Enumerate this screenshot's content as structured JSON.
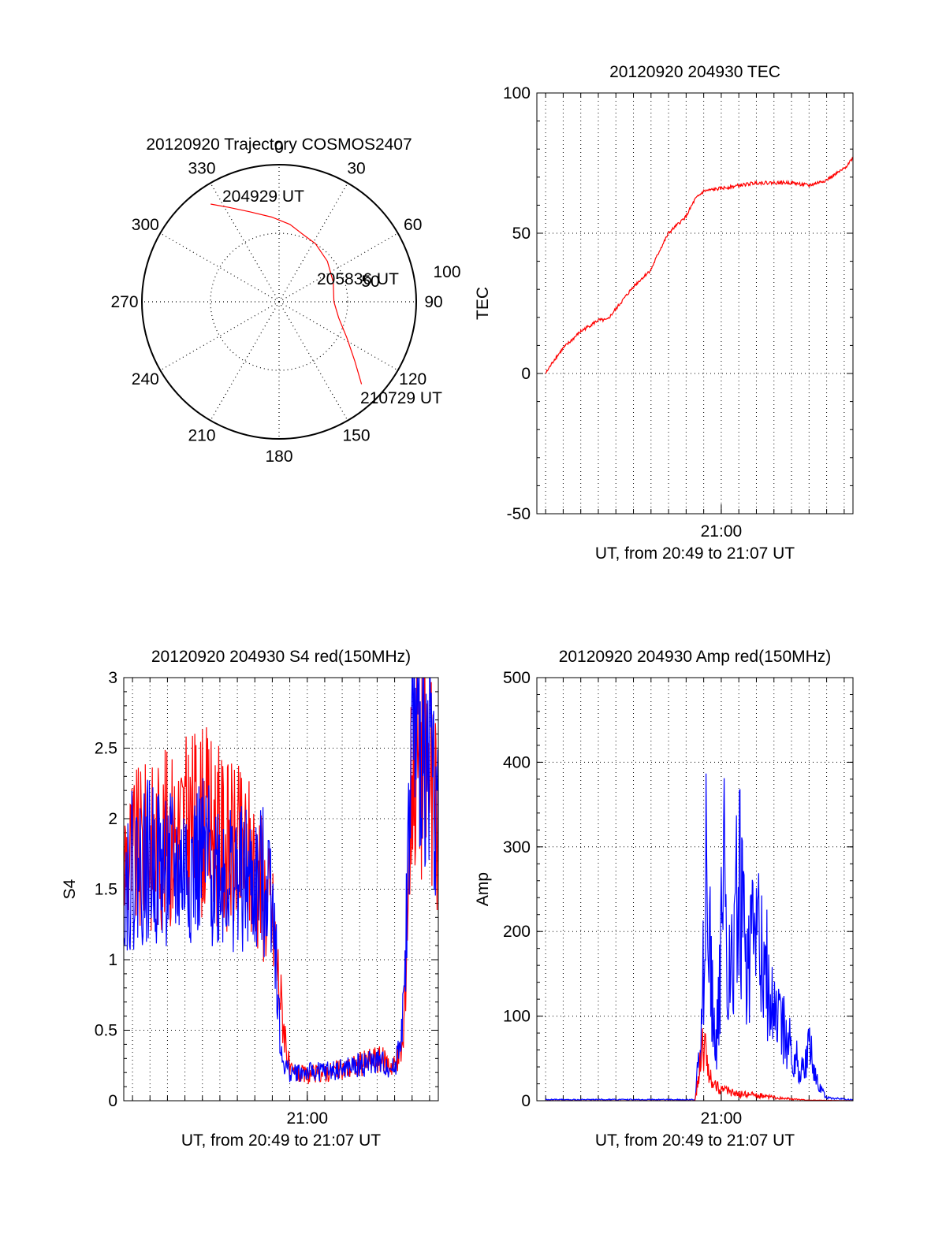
{
  "colors": {
    "red": "#ff0000",
    "blue": "#0000ff",
    "grid": "#000000",
    "frame": "#000000"
  },
  "chart_data": [
    {
      "id": "trajectory",
      "type": "polar",
      "title": "20120920 Trajectory COSMOS2407",
      "angle_labels": [
        "0",
        "30",
        "60",
        "90",
        "120",
        "150",
        "180",
        "210",
        "240",
        "270",
        "300",
        "330"
      ],
      "radius_labels": [
        "50",
        "100"
      ],
      "rlim": [
        0,
        100
      ],
      "track_labels": {
        "start": "204929 UT",
        "mid": "205836 UT",
        "end": "210729 UT"
      },
      "series": [
        {
          "color": "#ff0000",
          "azimuth_deg": [
            325,
            332,
            342,
            355,
            8,
            20,
            32,
            50,
            70,
            90,
            105,
            118,
            128,
            135
          ],
          "zenith": [
            87,
            78,
            69,
            62,
            57,
            52,
            50,
            46,
            42,
            40,
            45,
            56,
            70,
            85
          ]
        }
      ]
    },
    {
      "id": "tec",
      "type": "line",
      "title": "20120920 204930 TEC",
      "xlabel": "UT, from 20:49 to 21:07 UT",
      "ylabel": "TEC",
      "xlim": [
        "20:49:30",
        "21:07:30"
      ],
      "ylim": [
        -50,
        100
      ],
      "yticks": [
        "-50",
        "0",
        "50",
        "100"
      ],
      "xticks": [
        "21:00"
      ],
      "grid": true,
      "series": [
        {
          "color": "#ff0000",
          "x": [
            "20:50:00",
            "20:50:30",
            "20:51:00",
            "20:52:00",
            "20:53:00",
            "20:53:30",
            "20:54:00",
            "20:55:00",
            "20:56:00",
            "20:56:30",
            "20:57:00",
            "20:58:00",
            "20:58:30",
            "20:59:00",
            "21:00:00",
            "21:01:00",
            "21:02:00",
            "21:03:00",
            "21:04:00",
            "21:05:00",
            "21:06:00",
            "21:07:00",
            "21:07:30"
          ],
          "y": [
            0,
            5,
            9,
            15,
            19,
            19,
            23,
            31,
            37,
            44,
            50,
            56,
            62,
            65,
            66,
            67,
            68,
            68,
            68,
            67,
            69,
            73,
            77
          ]
        }
      ]
    },
    {
      "id": "s4",
      "type": "line",
      "title": "20120920 204930 S4 red(150MHz)",
      "xlabel": "UT, from 20:49 to 21:07 UT",
      "ylabel": "S4",
      "xlim": [
        "20:49:30",
        "21:07:30"
      ],
      "ylim": [
        0,
        3
      ],
      "yticks": [
        "0",
        "0.5",
        "1",
        "1.5",
        "2",
        "2.5",
        "3"
      ],
      "xticks": [
        "21:00"
      ],
      "grid": true,
      "series": [
        {
          "color": "#ff0000",
          "x": [
            "20:49:30",
            "20:51:00",
            "20:52:30",
            "20:54:00",
            "20:55:30",
            "20:57:00",
            "20:58:00",
            "20:58:30",
            "20:59:00",
            "21:00:00",
            "21:02:00",
            "21:04:00",
            "21:05:00",
            "21:05:30",
            "21:06:00",
            "21:07:00",
            "21:07:30"
          ],
          "y": [
            1.7,
            1.8,
            1.9,
            2.0,
            1.8,
            1.7,
            1.3,
            0.7,
            0.2,
            0.18,
            0.22,
            0.3,
            0.25,
            0.4,
            2.5,
            2.3,
            1.9
          ]
        },
        {
          "color": "#0000ff",
          "x": [
            "20:49:30",
            "20:51:00",
            "20:52:30",
            "20:54:00",
            "20:55:30",
            "20:57:00",
            "20:58:00",
            "20:58:30",
            "20:59:00",
            "21:00:00",
            "21:02:00",
            "21:04:00",
            "21:05:00",
            "21:05:30",
            "21:06:00",
            "21:07:00",
            "21:07:30"
          ],
          "y": [
            1.6,
            1.7,
            1.6,
            1.7,
            1.6,
            1.5,
            1.6,
            0.3,
            0.2,
            0.2,
            0.22,
            0.28,
            0.22,
            0.6,
            2.6,
            2.5,
            1.9
          ]
        }
      ]
    },
    {
      "id": "amp",
      "type": "line",
      "title": "20120920 204930 Amp red(150MHz)",
      "xlabel": "UT, from 20:49 to 21:07 UT",
      "ylabel": "Amp",
      "xlim": [
        "20:49:30",
        "21:07:30"
      ],
      "ylim": [
        0,
        500
      ],
      "yticks": [
        "0",
        "100",
        "200",
        "300",
        "400",
        "500"
      ],
      "xticks": [
        "21:00"
      ],
      "grid": true,
      "series": [
        {
          "color": "#0000ff",
          "x": [
            "20:50:00",
            "20:58:30",
            "20:58:50",
            "20:59:10",
            "20:59:40",
            "21:00:10",
            "21:00:30",
            "21:01:00",
            "21:01:30",
            "21:02:00",
            "21:02:30",
            "21:03:00",
            "21:03:30",
            "21:04:00",
            "21:04:30",
            "21:05:00",
            "21:05:30",
            "21:06:00",
            "21:07:30"
          ],
          "y": [
            2,
            2,
            120,
            420,
            80,
            390,
            200,
            420,
            220,
            300,
            250,
            160,
            130,
            100,
            60,
            100,
            30,
            5,
            2
          ]
        },
        {
          "color": "#ff0000",
          "x": [
            "20:50:00",
            "20:58:30",
            "20:58:45",
            "20:59:00",
            "20:59:20",
            "21:00:00",
            "21:01:00",
            "21:02:00",
            "21:03:00",
            "21:04:00",
            "21:05:00",
            "21:07:30"
          ],
          "y": [
            0,
            0,
            60,
            110,
            40,
            20,
            12,
            10,
            6,
            3,
            1,
            0
          ]
        }
      ]
    }
  ]
}
